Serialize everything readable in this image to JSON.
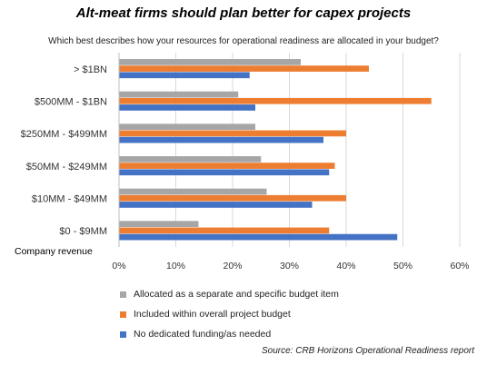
{
  "chart_data": {
    "type": "bar",
    "orientation": "horizontal",
    "title": "Alt-meat firms should plan better for capex projects",
    "subtitle": "Which best describes how your resources for operational readiness are allocated in your budget?",
    "ylabel": "Company revenue",
    "categories": [
      "> $1BN",
      "$500MM - $1BN",
      "$250MM - $499MM",
      "$50MM - $249MM",
      "$10MM - $49MM",
      "$0 - $9MM"
    ],
    "series": [
      {
        "name": "Allocated as a separate and specific budget item",
        "color": "#a6a6a6",
        "values": [
          32,
          21,
          24,
          25,
          26,
          14
        ]
      },
      {
        "name": "Included within overall project budget",
        "color": "#ed7d31",
        "values": [
          44,
          55,
          40,
          38,
          40,
          37
        ]
      },
      {
        "name": "No dedicated funding/as needed",
        "color": "#4472c4",
        "values": [
          23,
          24,
          36,
          37,
          34,
          49
        ]
      }
    ],
    "xlim": [
      0,
      60
    ],
    "xticks": [
      "0%",
      "10%",
      "20%",
      "30%",
      "40%",
      "50%",
      "60%"
    ],
    "grid": true,
    "legend_position": "bottom"
  },
  "source": "Source: CRB Horizons Operational Readiness report"
}
